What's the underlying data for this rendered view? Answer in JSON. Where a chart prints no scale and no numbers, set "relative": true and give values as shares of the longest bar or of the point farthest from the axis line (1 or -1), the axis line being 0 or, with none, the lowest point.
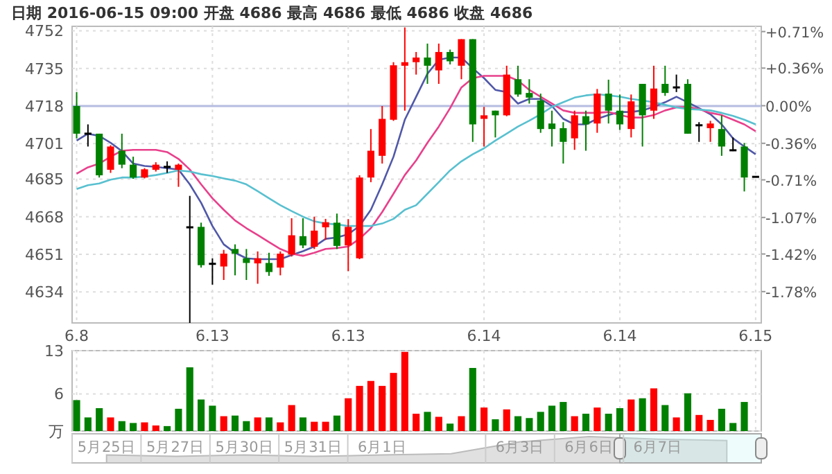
{
  "chart_data": [
    {
      "type": "candlestick",
      "title": "日期 2016-06-15 09:00  开盘 4686  最高 4686  最低 4686  收盘 4686",
      "categories": [
        "6.8",
        null,
        null,
        null,
        null,
        null,
        null,
        null,
        null,
        null,
        null,
        null,
        "6.13",
        null,
        null,
        null,
        null,
        null,
        null,
        null,
        null,
        null,
        null,
        null,
        "6.13",
        null,
        null,
        null,
        null,
        null,
        null,
        null,
        null,
        null,
        null,
        null,
        "6.14",
        null,
        null,
        null,
        null,
        null,
        null,
        null,
        null,
        null,
        null,
        null,
        "6.14",
        null,
        null,
        null,
        null,
        null,
        null,
        null,
        null,
        null,
        null,
        null,
        "6.15"
      ],
      "ohlc": [
        [
          4718,
          4724.3,
          4703.4,
          4705.5
        ],
        [
          4705.5,
          4709.7,
          4699.7,
          4705.5
        ],
        [
          4705.5,
          4705.5,
          4685.7,
          4686.7
        ],
        [
          4689.2,
          4700.3,
          4687.8,
          4699.7
        ],
        [
          4697.8,
          4705.5,
          4689.9,
          4691.5
        ],
        [
          4691.5,
          4695.1,
          4685.1,
          4685.7
        ],
        [
          4685.7,
          4689.9,
          4685.3,
          4689.4
        ],
        [
          4689.2,
          4692.6,
          4688.4,
          4691.5
        ],
        [
          4690.5,
          4693,
          4687.8,
          4690.5
        ],
        [
          4689.2,
          4692,
          4681.5,
          4691.5
        ],
        [
          4663.2,
          4677.4,
          4620,
          4663.2
        ],
        [
          4663.4,
          4665.3,
          4645,
          4646.1
        ],
        [
          4646.7,
          4649.2,
          4637.3,
          4646.7
        ],
        [
          4645.5,
          4653,
          4639.4,
          4651.3
        ],
        [
          4653.4,
          4655.5,
          4641.5,
          4651.3
        ],
        [
          4649.2,
          4653.4,
          4639.4,
          4647.1
        ],
        [
          4646.9,
          4652.3,
          4637.7,
          4649.2
        ],
        [
          4647.1,
          4651.7,
          4641.3,
          4643
        ],
        [
          4645,
          4652.3,
          4641.5,
          4651.3
        ],
        [
          4650.9,
          4667.3,
          4650,
          4659.6
        ],
        [
          4659.2,
          4667.3,
          4653.8,
          4655
        ],
        [
          4654.4,
          4668,
          4653.4,
          4661.7
        ],
        [
          4663.2,
          4667,
          4657.5,
          4665.5
        ],
        [
          4665.3,
          4669.4,
          4653.4,
          4654.8
        ],
        [
          4655,
          4666.9,
          4643.4,
          4663.4
        ],
        [
          4649.2,
          4686.7,
          4648.8,
          4685.7
        ],
        [
          4685.7,
          4707.6,
          4683.6,
          4697.8
        ],
        [
          4695.5,
          4718,
          4692,
          4712.2
        ],
        [
          4711.8,
          4737.8,
          4711.3,
          4736.4
        ],
        [
          4736.2,
          4753.5,
          4715.9,
          4737.8
        ],
        [
          4737.8,
          4742.4,
          4732.2,
          4739.9
        ],
        [
          4739.9,
          4746.2,
          4728,
          4736.2
        ],
        [
          4734.1,
          4746.2,
          4728,
          4742.4
        ],
        [
          4742.4,
          4743.5,
          4736.8,
          4738.2
        ],
        [
          4736.2,
          4748.2,
          4730.1,
          4748.2
        ],
        [
          4748.2,
          4748.2,
          4701.8,
          4709.7
        ],
        [
          4712.2,
          4717.6,
          4699.7,
          4713.8
        ],
        [
          4715.9,
          4715.9,
          4703.8,
          4713.8
        ],
        [
          4713.8,
          4736.2,
          4713.4,
          4732.2
        ],
        [
          4730.1,
          4736.2,
          4722.2,
          4723.2
        ],
        [
          4723.9,
          4730.1,
          4719.1,
          4721.8
        ],
        [
          4720.5,
          4723.6,
          4705.9,
          4707.6
        ],
        [
          4710.1,
          4715.9,
          4699.7,
          4707.6
        ],
        [
          4708,
          4710.7,
          4692,
          4701.8
        ],
        [
          4703.4,
          4715.9,
          4698.2,
          4713.8
        ],
        [
          4713.4,
          4715.9,
          4697.8,
          4709.7
        ],
        [
          4710.1,
          4725.7,
          4705.9,
          4723.6
        ],
        [
          4723.6,
          4729.9,
          4710.1,
          4715.9
        ],
        [
          4715.9,
          4723.2,
          4707.2,
          4709.7
        ],
        [
          4707.6,
          4723.2,
          4703.8,
          4720.1
        ],
        [
          4728,
          4728,
          4699.7,
          4713.8
        ],
        [
          4715.9,
          4736.2,
          4712.2,
          4725.9
        ],
        [
          4728,
          4736.2,
          4722.6,
          4723.9
        ],
        [
          4726.4,
          4732.2,
          4724.3,
          4726.4
        ],
        [
          4728,
          4730.1,
          4705.5,
          4705.5
        ],
        [
          4709.3,
          4710.7,
          4701.8,
          4709.3
        ],
        [
          4708,
          4711.3,
          4701.8,
          4710.1
        ],
        [
          4707.6,
          4713.8,
          4695.5,
          4699.7
        ],
        [
          4698,
          4703.8,
          4697.6,
          4698
        ],
        [
          4699.7,
          4701.3,
          4679.4,
          4685.7
        ],
        [
          4686,
          4686,
          4686,
          4686
        ]
      ],
      "colors": [
        "#008000",
        "#000000",
        "#008000",
        "#ff0000",
        "#008000",
        "#008000",
        "#ff0000",
        "#ff0000",
        "#000000",
        "#ff0000",
        "#000000",
        "#008000",
        "#000000",
        "#ff0000",
        "#008000",
        "#008000",
        "#ff0000",
        "#008000",
        "#ff0000",
        "#ff0000",
        "#008000",
        "#ff0000",
        "#ff0000",
        "#008000",
        "#ff0000",
        "#ff0000",
        "#ff0000",
        "#ff0000",
        "#ff0000",
        "#ff0000",
        "#ff0000",
        "#008000",
        "#ff0000",
        "#008000",
        "#ff0000",
        "#008000",
        "#ff0000",
        "#008000",
        "#ff0000",
        "#008000",
        "#008000",
        "#008000",
        "#008000",
        "#008000",
        "#ff0000",
        "#008000",
        "#ff0000",
        "#008000",
        "#008000",
        "#ff0000",
        "#008000",
        "#ff0000",
        "#008000",
        "#000000",
        "#008000",
        "#000000",
        "#ff0000",
        "#008000",
        "#000000",
        "#008000",
        "#000000"
      ],
      "series": [
        {
          "type": "line",
          "color": "#5058a8",
          "values": [
            4702.4,
            4705.5,
            4704.5,
            4701.4,
            4697.6,
            4692,
            4690.9,
            4690.5,
            4689.9,
            4689.3,
            4682.6,
            4674.3,
            4663.8,
            4655.5,
            4651.7,
            4649.2,
            4648.8,
            4648.8,
            4648.8,
            4650.7,
            4652.4,
            4654.5,
            4658,
            4658.6,
            4660.1,
            4663.8,
            4671.1,
            4682.6,
            4695.1,
            4711.8,
            4722.2,
            4732.6,
            4738.9,
            4739.9,
            4739.9,
            4735.1,
            4730.6,
            4725.3,
            4724.3,
            4719.1,
            4721.2,
            4721.2,
            4718,
            4712.2,
            4709.7,
            4709.7,
            4712.2,
            4713.9,
            4715.3,
            4715.3,
            4716,
            4717.6,
            4719.7,
            4722.2,
            4719.7,
            4717,
            4714.3,
            4709.7,
            4703.4,
            4699.7,
            4696.2
          ]
        },
        {
          "type": "line",
          "color": "#e8408c",
          "values": [
            4687.4,
            4690.3,
            4692,
            4695.1,
            4697.8,
            4698.2,
            4698.2,
            4698.2,
            4697.2,
            4694.1,
            4689.3,
            4682.6,
            4676.3,
            4671.1,
            4666.3,
            4662.8,
            4659.7,
            4656.5,
            4653.4,
            4651.3,
            4650.3,
            4651.7,
            4653.4,
            4653.8,
            4654.5,
            4658,
            4662.8,
            4670.1,
            4678.4,
            4686.8,
            4693.4,
            4701.4,
            4708.7,
            4717,
            4726.4,
            4730.6,
            4731.6,
            4731.6,
            4731.6,
            4729.5,
            4725.3,
            4722.2,
            4719.1,
            4716,
            4714.9,
            4714.9,
            4714.9,
            4715.3,
            4713.9,
            4712.8,
            4712.8,
            4713.9,
            4716,
            4717.4,
            4717.6,
            4716.6,
            4714.9,
            4713.9,
            4711.8,
            4709.7,
            4706.6
          ]
        },
        {
          "type": "line",
          "color": "#58c0d0",
          "values": [
            4680.5,
            4682.2,
            4683,
            4684.7,
            4685.7,
            4685.7,
            4686.1,
            4686.8,
            4687.8,
            4688.9,
            4688.4,
            4687.2,
            4686.4,
            4685.3,
            4684.3,
            4682.6,
            4679.5,
            4676.3,
            4673.2,
            4670.5,
            4668,
            4665.9,
            4664.9,
            4664.5,
            4663.8,
            4663.8,
            4663.8,
            4664.9,
            4667,
            4671.1,
            4673.2,
            4678.4,
            4683.6,
            4688.9,
            4693,
            4696.2,
            4698.9,
            4702.4,
            4705.5,
            4708.7,
            4711.4,
            4714.3,
            4717.6,
            4719.7,
            4721.8,
            4722.8,
            4723.3,
            4722.8,
            4722.2,
            4721.2,
            4720.5,
            4719.7,
            4718.5,
            4717.4,
            4716.6,
            4716.4,
            4716,
            4714.9,
            4713.5,
            4711.8,
            4709.7
          ]
        }
      ],
      "ylim": [
        4620,
        4754
      ],
      "yticks": [
        4634,
        4651,
        4668,
        4685,
        4701,
        4718,
        4735,
        4752
      ],
      "y2lim": [
        -2.08,
        0.76
      ],
      "y2ticks": [
        {
          "value": 0.71,
          "label": "+0.71%"
        },
        {
          "value": 0.36,
          "label": "+0.36%"
        },
        {
          "value": 0,
          "label": "0.00%"
        },
        {
          "value": -0.36,
          "label": "-0.36%"
        },
        {
          "value": -0.71,
          "label": "-0.71%"
        },
        {
          "value": -1.07,
          "label": "-1.07%"
        },
        {
          "value": -1.42,
          "label": "-1.42%"
        },
        {
          "value": -1.78,
          "label": "-1.78%"
        }
      ],
      "ref_lines": [
        {
          "axis": "y",
          "value": 4718,
          "color": "#b4bce0"
        }
      ],
      "grid": true
    },
    {
      "type": "bar",
      "categories": [
        "6.8",
        null,
        null,
        null,
        null,
        null,
        null,
        null,
        null,
        null,
        null,
        null,
        "6.13",
        null,
        null,
        null,
        null,
        null,
        null,
        null,
        null,
        null,
        null,
        null,
        "6.13",
        null,
        null,
        null,
        null,
        null,
        null,
        null,
        null,
        null,
        null,
        null,
        "6.14",
        null,
        null,
        null,
        null,
        null,
        null,
        null,
        null,
        null,
        null,
        null,
        "6.14",
        null,
        null,
        null,
        null,
        null,
        null,
        null,
        null,
        null,
        null,
        null,
        "6.15"
      ],
      "values": [
        5.0,
        2.2,
        3.7,
        2.2,
        1.6,
        1.3,
        1.4,
        0.9,
        0.8,
        3.6,
        10.3,
        5.1,
        4.1,
        2.4,
        2.5,
        1.6,
        2.2,
        2.2,
        1.4,
        4.2,
        2.2,
        1.5,
        1.5,
        2.5,
        5.3,
        7.3,
        8.1,
        7.3,
        9.4,
        12.8,
        2.8,
        3.1,
        2.3,
        1.2,
        2.4,
        10.2,
        3.8,
        1.9,
        3.5,
        2.4,
        2.1,
        3.1,
        4.1,
        4.7,
        2.4,
        2.8,
        3.8,
        2.8,
        3.7,
        5.1,
        5.3,
        6.9,
        4.2,
        2.2,
        6.1,
        2.6,
        1.8,
        3.6,
        1.3,
        4.7,
        null
      ],
      "colors": [
        "#008000",
        "#008000",
        "#008000",
        "#ff0000",
        "#008000",
        "#008000",
        "#ff0000",
        "#ff0000",
        "#008000",
        "#008000",
        "#008000",
        "#008000",
        "#008000",
        "#ff0000",
        "#008000",
        "#008000",
        "#ff0000",
        "#008000",
        "#ff0000",
        "#ff0000",
        "#008000",
        "#ff0000",
        "#ff0000",
        "#008000",
        "#ff0000",
        "#ff0000",
        "#ff0000",
        "#ff0000",
        "#ff0000",
        "#ff0000",
        "#ff0000",
        "#008000",
        "#ff0000",
        "#008000",
        "#ff0000",
        "#008000",
        "#ff0000",
        "#008000",
        "#ff0000",
        "#008000",
        "#008000",
        "#008000",
        "#008000",
        "#008000",
        "#ff0000",
        "#008000",
        "#ff0000",
        "#008000",
        "#008000",
        "#ff0000",
        "#008000",
        "#ff0000",
        "#008000",
        "#ff0000",
        "#008000",
        "#ff0000",
        "#ff0000",
        "#008000",
        "#008000",
        "#008000",
        null
      ],
      "ylim": [
        0,
        13
      ],
      "yticks": [
        {
          "value": 0,
          "label": "万"
        },
        6,
        13
      ],
      "tick_labels": "y",
      "grid": true
    },
    {
      "type": "area",
      "relative": true,
      "categories": [
        "5月25日",
        "5月27日",
        "5月30日",
        "5月31日",
        "6月1日",
        null,
        "6月3日",
        "6月6日",
        "6月7日",
        null
      ],
      "values": [
        0.3,
        0.25,
        0.3,
        0.25,
        0.3,
        0.35,
        0.8,
        1,
        0.9,
        0.85
      ],
      "color": "#e0e0e0",
      "tick_labels": "x"
    }
  ]
}
